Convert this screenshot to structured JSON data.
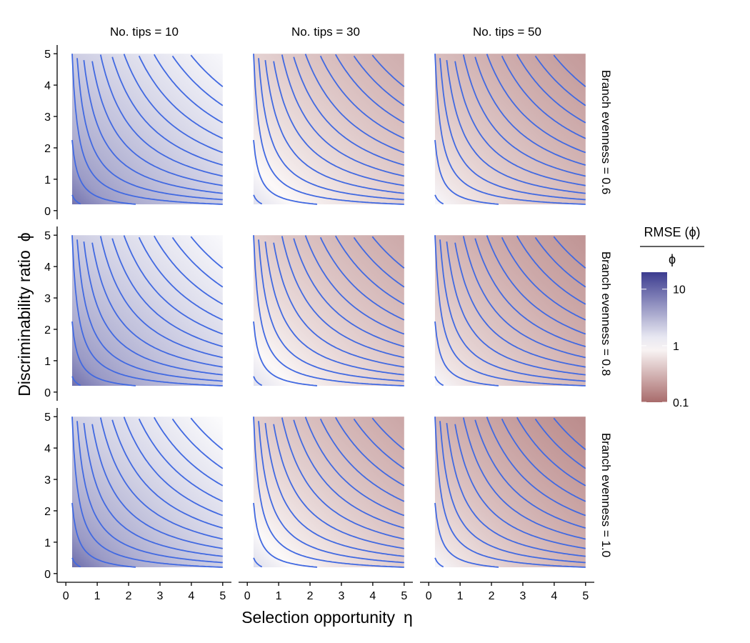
{
  "chart_data": {
    "type": "heatmap",
    "description_axes": {
      "xlabel": "Selection opportunity",
      "xlabel_symbol": "η",
      "ylabel": "Discriminability ratio",
      "ylabel_symbol": "ϕ",
      "xlim": [
        0,
        5
      ],
      "ylim": [
        0,
        5
      ],
      "x_ticks": [
        "0",
        "1",
        "2",
        "3",
        "4",
        "5"
      ],
      "y_ticks": [
        "0",
        "1",
        "2",
        "3",
        "4",
        "5"
      ],
      "data_range": [
        0.2,
        5
      ]
    },
    "columns": [
      {
        "label": "No. tips = 10",
        "tips": 10
      },
      {
        "label": "No. tips = 30",
        "tips": 30
      },
      {
        "label": "No. tips = 50",
        "tips": 50
      }
    ],
    "rows": [
      {
        "label": "Branch evenness = 0.6",
        "evenness": 0.6
      },
      {
        "label": "Branch evenness = 0.8",
        "evenness": 0.8
      },
      {
        "label": "Branch evenness = 1.0",
        "evenness": 1.0
      }
    ],
    "contours": {
      "color": "#4169e1",
      "levels": [
        0.1,
        0.45,
        1,
        1.75,
        2.75,
        4,
        5.5,
        7.25,
        9.25,
        11.5,
        14,
        16.75,
        19.75
      ]
    },
    "legend": {
      "title": "RMSE (ϕ)",
      "title_denominator": "ϕ",
      "scale": "log",
      "ticks": [
        "10",
        "1",
        "0.1"
      ],
      "color_high": "#3b3b8f",
      "color_mid": "#ffffff",
      "color_low": "#a86b6b"
    },
    "panels": [
      {
        "row": 0,
        "col": 0,
        "log10_rmse_high": 0.93,
        "log10_rmse_low": 0.05
      },
      {
        "row": 0,
        "col": 1,
        "log10_rmse_high": 0.2,
        "log10_rmse_low": -0.55
      },
      {
        "row": 0,
        "col": 2,
        "log10_rmse_high": 0.05,
        "log10_rmse_low": -0.68
      },
      {
        "row": 1,
        "col": 0,
        "log10_rmse_high": 0.95,
        "log10_rmse_low": 0.04
      },
      {
        "row": 1,
        "col": 1,
        "log10_rmse_high": 0.2,
        "log10_rmse_low": -0.58
      },
      {
        "row": 1,
        "col": 2,
        "log10_rmse_high": 0.05,
        "log10_rmse_low": -0.72
      },
      {
        "row": 2,
        "col": 0,
        "log10_rmse_high": 0.97,
        "log10_rmse_low": 0.02
      },
      {
        "row": 2,
        "col": 1,
        "log10_rmse_high": 0.22,
        "log10_rmse_low": -0.6
      },
      {
        "row": 2,
        "col": 2,
        "log10_rmse_high": 0.06,
        "log10_rmse_low": -0.78
      }
    ]
  }
}
